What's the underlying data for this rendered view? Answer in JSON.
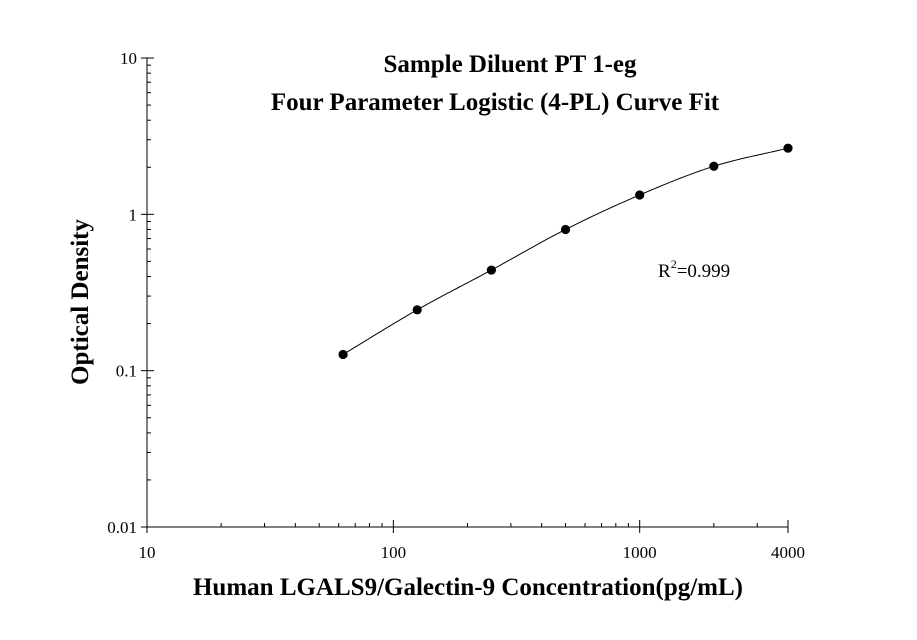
{
  "chart_data": {
    "type": "scatter",
    "title": "Sample Diluent PT 1-eg",
    "subtitle": "Four Parameter Logistic (4-PL) Curve Fit",
    "xlabel": "Human LGALS9/Galectin-9 Concentration(pg/mL)",
    "ylabel": "Optical Density",
    "x_scale": "log",
    "y_scale": "log",
    "xlim": [
      10,
      4000
    ],
    "ylim": [
      0.01,
      10
    ],
    "x_ticks": [
      {
        "value": 10,
        "label": "10"
      },
      {
        "value": 100,
        "label": "100"
      },
      {
        "value": 1000,
        "label": "1000"
      },
      {
        "value": 4000,
        "label": "4000"
      }
    ],
    "y_ticks": [
      {
        "value": 10,
        "label": "10"
      },
      {
        "value": 1,
        "label": "1"
      },
      {
        "value": 0.1,
        "label": "0.1"
      },
      {
        "value": 0.01,
        "label": "0.01"
      }
    ],
    "grid": false,
    "series": [
      {
        "points": [
          {
            "x": 62.5,
            "y": 0.127
          },
          {
            "x": 125,
            "y": 0.245
          },
          {
            "x": 250,
            "y": 0.44
          },
          {
            "x": 500,
            "y": 0.8
          },
          {
            "x": 1000,
            "y": 1.33
          },
          {
            "x": 2000,
            "y": 2.03
          },
          {
            "x": 4000,
            "y": 2.65
          }
        ],
        "marker": "filled-circle",
        "color": "#000000"
      }
    ],
    "fit_curve": {
      "model": "4-PL",
      "x_range": [
        62.5,
        4000
      ]
    },
    "annotation": {
      "base": "R",
      "superscript": "2",
      "rest": "=0.999"
    }
  }
}
